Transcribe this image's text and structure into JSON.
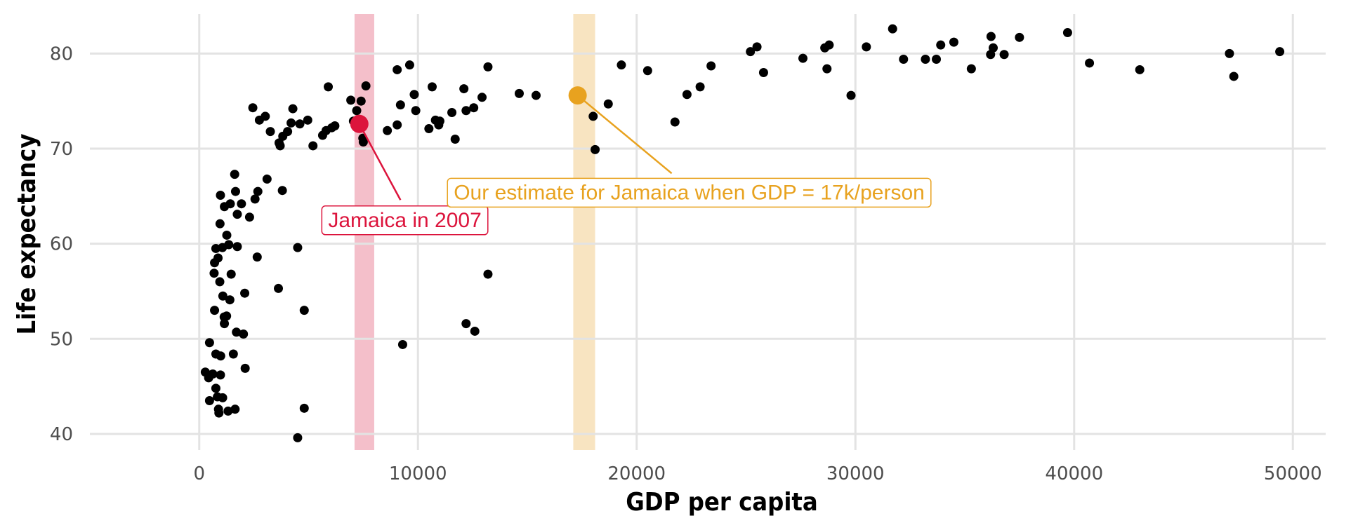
{
  "chart_data": {
    "type": "scatter",
    "xlabel": "GDP per capita",
    "ylabel": "Life expectancy",
    "xlim": [
      -5000,
      51500
    ],
    "ylim": [
      38.3,
      84.6
    ],
    "x_ticks": [
      0,
      10000,
      20000,
      30000,
      40000,
      50000
    ],
    "x_tick_labels": [
      "0",
      "10000",
      "20000",
      "30000",
      "40000",
      "50000"
    ],
    "y_ticks": [
      40,
      50,
      60,
      70,
      80
    ],
    "y_tick_labels": [
      "40",
      "50",
      "60",
      "70",
      "80"
    ],
    "grid": true,
    "colors": {
      "point": "#000000",
      "highlight_red": "#dc143c",
      "highlight_orange": "#e8a21f",
      "band_red": "#f4bfca",
      "band_orange": "#f8e4c1",
      "grid": "#e3e3e3"
    },
    "bands": [
      {
        "name": "red",
        "x_from": 7100,
        "x_to": 8000,
        "color": "#f4bfca"
      },
      {
        "name": "orange",
        "x_from": 17100,
        "x_to": 18100,
        "color": "#f8e4c1"
      }
    ],
    "highlight_points": [
      {
        "name": "jamaica-2007",
        "x": 7320,
        "y": 72.6,
        "color": "#dc143c"
      },
      {
        "name": "estimate-17k",
        "x": 17300,
        "y": 75.6,
        "color": "#e8a21f"
      }
    ],
    "annotations": [
      {
        "name": "jamaica-2007-label",
        "text": "Jamaica in 2007",
        "x": 9400,
        "y": 62.5,
        "color": "#dc143c",
        "point_x": 7320,
        "point_y": 72.6,
        "anchor_x": 9200,
        "anchor_y": 64.6
      },
      {
        "name": "estimate-label",
        "text": "Our estimate for Jamaica when GDP = 17k/person",
        "x": 22400,
        "y": 65.4,
        "color": "#e8a21f",
        "point_x": 17300,
        "point_y": 75.6,
        "anchor_x": 21600,
        "anchor_y": 67.4
      }
    ],
    "points": [
      [
        277,
        46.5
      ],
      [
        430,
        45.9
      ],
      [
        620,
        46.3
      ],
      [
        470,
        43.5
      ],
      [
        760,
        44.8
      ],
      [
        900,
        42.2
      ],
      [
        830,
        43.9
      ],
      [
        1070,
        43.8
      ],
      [
        880,
        42.6
      ],
      [
        1320,
        42.4
      ],
      [
        1640,
        42.6
      ],
      [
        970,
        46.2
      ],
      [
        980,
        48.2
      ],
      [
        760,
        48.4
      ],
      [
        470,
        49.6
      ],
      [
        1150,
        51.6
      ],
      [
        1250,
        52.4
      ],
      [
        1560,
        48.4
      ],
      [
        2100,
        46.9
      ],
      [
        1700,
        50.7
      ],
      [
        2020,
        50.5
      ],
      [
        1080,
        54.5
      ],
      [
        1400,
        54.1
      ],
      [
        680,
        56.9
      ],
      [
        940,
        56.0
      ],
      [
        1460,
        56.8
      ],
      [
        700,
        53.0
      ],
      [
        1140,
        52.3
      ],
      [
        2080,
        54.8
      ],
      [
        3620,
        55.3
      ],
      [
        700,
        58.0
      ],
      [
        860,
        58.5
      ],
      [
        760,
        59.5
      ],
      [
        1060,
        59.6
      ],
      [
        1260,
        60.9
      ],
      [
        1350,
        59.9
      ],
      [
        1740,
        59.7
      ],
      [
        950,
        62.1
      ],
      [
        2650,
        58.6
      ],
      [
        4500,
        59.6
      ],
      [
        970,
        65.1
      ],
      [
        1150,
        63.9
      ],
      [
        1420,
        64.2
      ],
      [
        1660,
        65.5
      ],
      [
        1740,
        63.1
      ],
      [
        1930,
        64.2
      ],
      [
        2300,
        62.8
      ],
      [
        2550,
        64.7
      ],
      [
        2680,
        65.5
      ],
      [
        3800,
        65.6
      ],
      [
        3100,
        66.8
      ],
      [
        1620,
        67.3
      ],
      [
        3700,
        70.3
      ],
      [
        4040,
        71.8
      ],
      [
        3820,
        71.3
      ],
      [
        3650,
        70.6
      ],
      [
        3250,
        71.8
      ],
      [
        2450,
        74.3
      ],
      [
        2750,
        73.0
      ],
      [
        3020,
        73.4
      ],
      [
        4200,
        72.7
      ],
      [
        4280,
        74.2
      ],
      [
        4600,
        72.6
      ],
      [
        4960,
        73.0
      ],
      [
        5200,
        70.3
      ],
      [
        5640,
        71.4
      ],
      [
        5800,
        71.9
      ],
      [
        6060,
        72.2
      ],
      [
        6200,
        72.4
      ],
      [
        5900,
        76.5
      ],
      [
        6930,
        75.1
      ],
      [
        7400,
        75.0
      ],
      [
        7200,
        74.0
      ],
      [
        7620,
        76.6
      ],
      [
        7050,
        72.9
      ],
      [
        7480,
        71.1
      ],
      [
        7500,
        70.7
      ],
      [
        8600,
        71.9
      ],
      [
        9050,
        72.5
      ],
      [
        9200,
        74.6
      ],
      [
        9050,
        78.3
      ],
      [
        9620,
        78.8
      ],
      [
        9830,
        75.7
      ],
      [
        9900,
        74.0
      ],
      [
        10500,
        72.1
      ],
      [
        10650,
        76.5
      ],
      [
        10800,
        73.0
      ],
      [
        10950,
        72.5
      ],
      [
        11000,
        72.9
      ],
      [
        11550,
        73.8
      ],
      [
        11700,
        71.0
      ],
      [
        12100,
        76.3
      ],
      [
        12200,
        74.0
      ],
      [
        12550,
        74.3
      ],
      [
        12930,
        75.4
      ],
      [
        13200,
        78.6
      ],
      [
        14630,
        75.8
      ],
      [
        15400,
        75.6
      ],
      [
        18010,
        73.4
      ],
      [
        18100,
        69.9
      ],
      [
        18700,
        74.7
      ],
      [
        19300,
        78.8
      ],
      [
        20500,
        78.2
      ],
      [
        21750,
        72.8
      ],
      [
        22300,
        75.7
      ],
      [
        22900,
        76.5
      ],
      [
        23400,
        78.7
      ],
      [
        25200,
        80.2
      ],
      [
        25500,
        80.7
      ],
      [
        25800,
        78.0
      ],
      [
        27600,
        79.5
      ],
      [
        28600,
        80.6
      ],
      [
        28700,
        78.4
      ],
      [
        28800,
        80.9
      ],
      [
        29800,
        75.6
      ],
      [
        30500,
        80.7
      ],
      [
        31700,
        82.6
      ],
      [
        32200,
        79.4
      ],
      [
        33200,
        79.4
      ],
      [
        33700,
        79.4
      ],
      [
        33900,
        80.9
      ],
      [
        34500,
        81.2
      ],
      [
        35300,
        78.4
      ],
      [
        36200,
        81.8
      ],
      [
        36300,
        80.6
      ],
      [
        36180,
        79.9
      ],
      [
        36800,
        79.9
      ],
      [
        37500,
        81.7
      ],
      [
        39700,
        82.2
      ],
      [
        40700,
        79.0
      ],
      [
        43000,
        78.3
      ],
      [
        47100,
        80.0
      ],
      [
        47300,
        77.6
      ],
      [
        49400,
        80.2
      ],
      [
        4500,
        39.6
      ],
      [
        4800,
        42.7
      ],
      [
        4800,
        53.0
      ],
      [
        9300,
        49.4
      ],
      [
        12200,
        51.6
      ],
      [
        12600,
        50.8
      ],
      [
        13200,
        56.8
      ]
    ]
  }
}
